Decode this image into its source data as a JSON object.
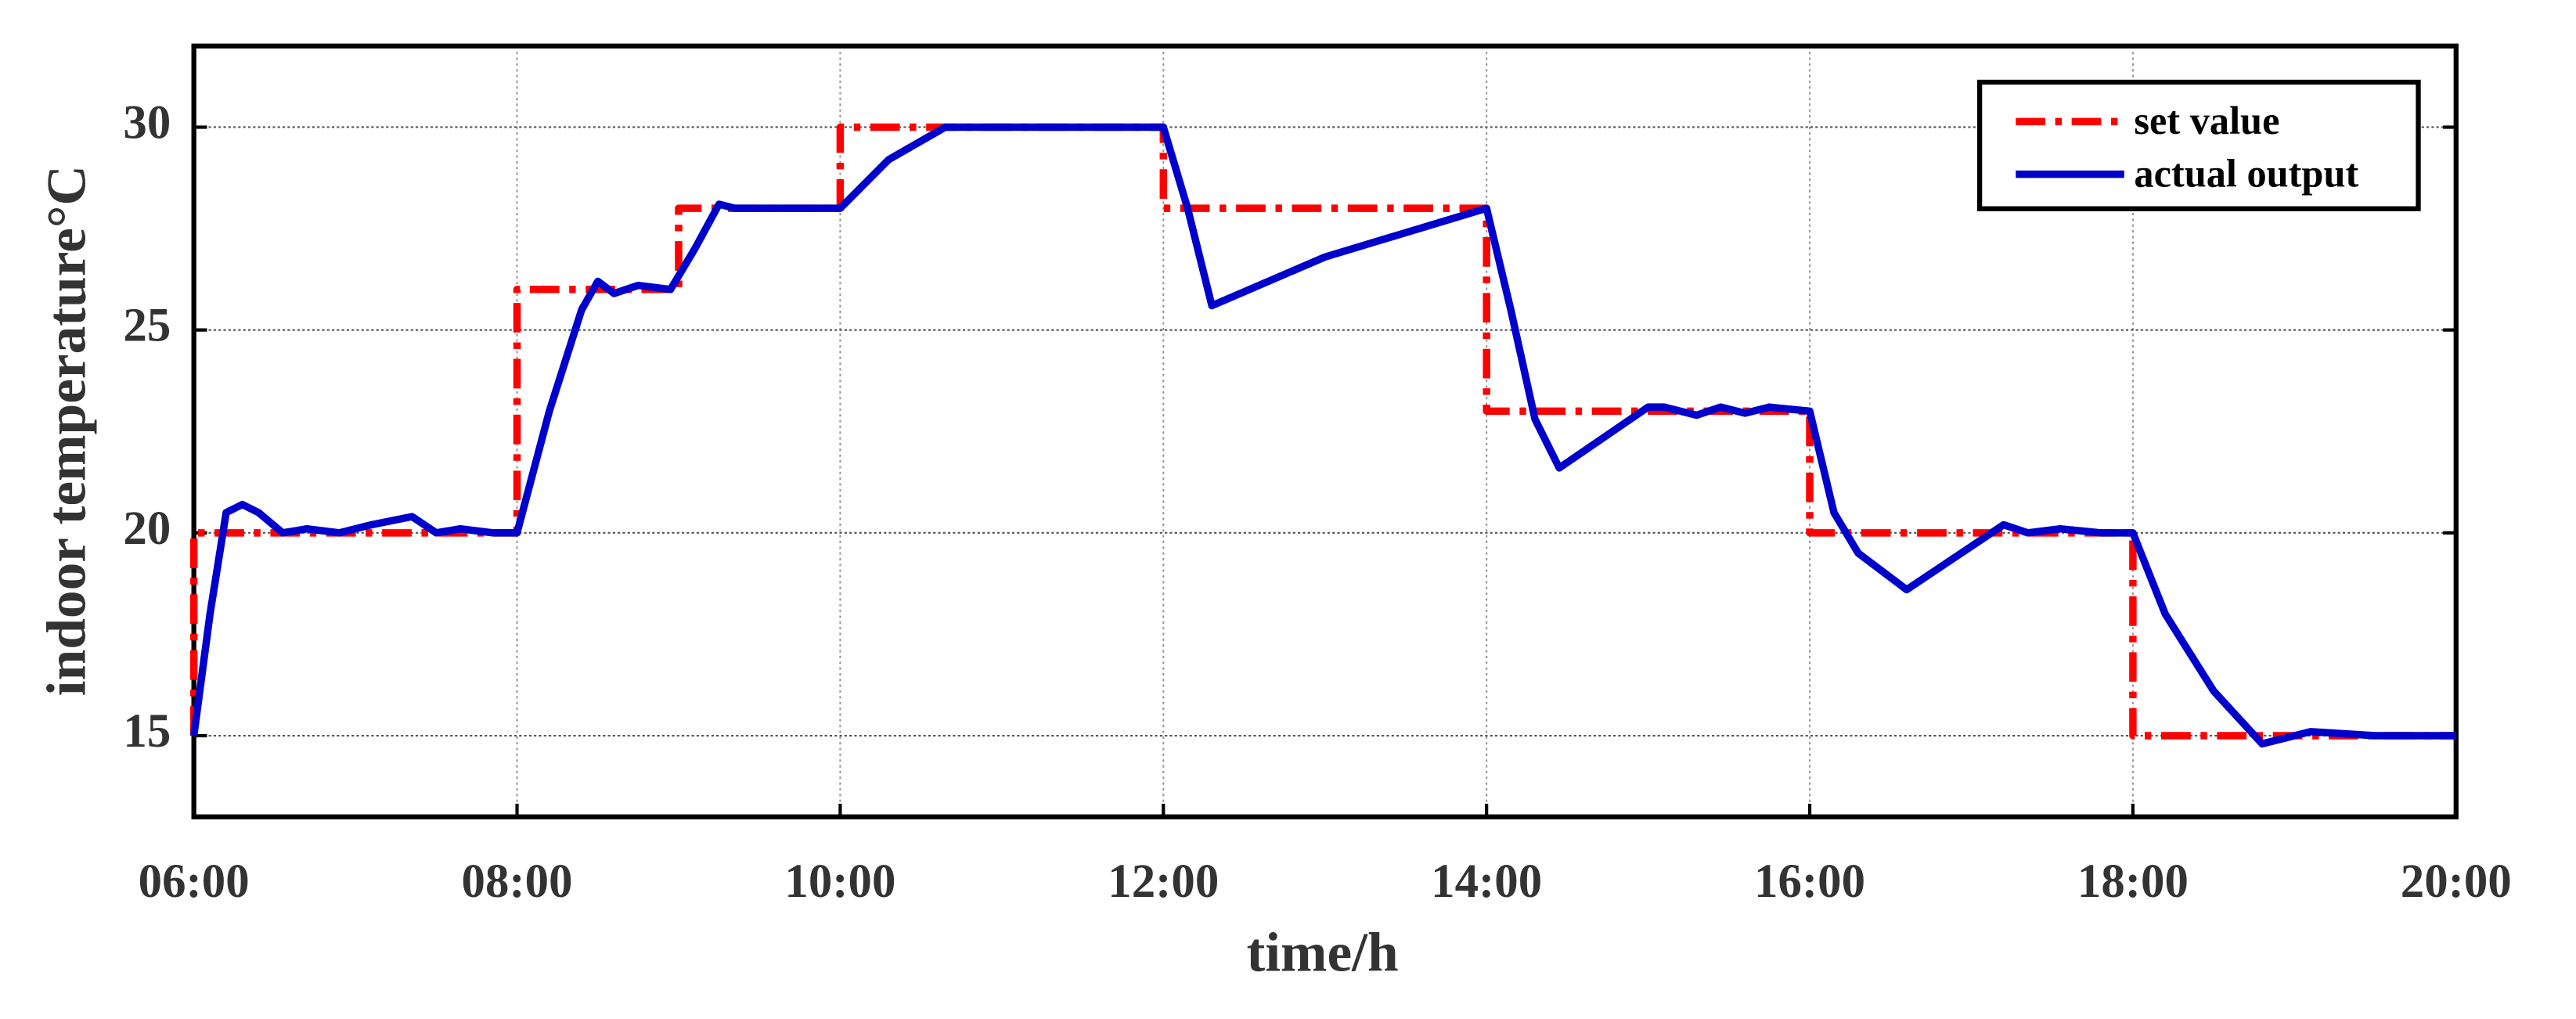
{
  "chart_data": {
    "type": "line",
    "xlabel": "time/h",
    "ylabel": "indoor temperature°C",
    "xlim": [
      6,
      20
    ],
    "xticks": [
      {
        "value": 6,
        "label": "06:00"
      },
      {
        "value": 8,
        "label": "08:00"
      },
      {
        "value": 10,
        "label": "10:00"
      },
      {
        "value": 12,
        "label": "12:00"
      },
      {
        "value": 14,
        "label": "14:00"
      },
      {
        "value": 16,
        "label": "16:00"
      },
      {
        "value": 18,
        "label": "18:00"
      },
      {
        "value": 20,
        "label": "20:00"
      }
    ],
    "ylim": [
      13,
      32
    ],
    "yticks": [
      15,
      20,
      25,
      30
    ],
    "grid": true,
    "legend": "upper right",
    "series": [
      {
        "name": "set value",
        "color": "#ff0000",
        "dash": "dashdot",
        "x": [
          6,
          6,
          8,
          8,
          9,
          9,
          10,
          10,
          12,
          12,
          14,
          14,
          16,
          16,
          18,
          18,
          20
        ],
        "values": [
          15,
          20,
          20,
          26,
          26,
          28,
          28,
          30,
          30,
          28,
          28,
          23,
          23,
          20,
          20,
          15,
          15
        ]
      },
      {
        "name": "actual output",
        "color": "#0000cc",
        "dash": "solid",
        "x": [
          6.0,
          6.1,
          6.2,
          6.3,
          6.4,
          6.55,
          6.7,
          6.9,
          7.1,
          7.35,
          7.5,
          7.65,
          7.85,
          8.0,
          8.2,
          8.4,
          8.5,
          8.6,
          8.75,
          8.95,
          9.1,
          9.25,
          9.35,
          9.6,
          10.0,
          10.3,
          10.65,
          11,
          12,
          12.15,
          12.3,
          13,
          14,
          14.15,
          14.3,
          14.45,
          15,
          15.1,
          15.3,
          15.45,
          15.6,
          15.75,
          16,
          16.15,
          16.3,
          16.6,
          17.2,
          17.35,
          17.55,
          17.8,
          18,
          18.2,
          18.5,
          18.8,
          19.1,
          19.5,
          20
        ],
        "values": [
          15,
          18,
          20.5,
          20.7,
          20.5,
          20,
          20.1,
          20,
          20.2,
          20.4,
          20,
          20.1,
          20,
          20,
          23,
          25.5,
          26.2,
          25.9,
          26.1,
          26,
          27,
          28.1,
          28,
          28,
          28,
          29.2,
          30,
          30,
          30,
          28,
          25.6,
          26.8,
          28,
          25.5,
          22.8,
          21.6,
          23.1,
          23.1,
          22.9,
          23.1,
          22.95,
          23.1,
          23,
          20.5,
          19.5,
          18.6,
          20.2,
          20,
          20.1,
          20,
          20,
          18,
          16.1,
          14.8,
          15.1,
          15,
          15
        ]
      }
    ]
  }
}
